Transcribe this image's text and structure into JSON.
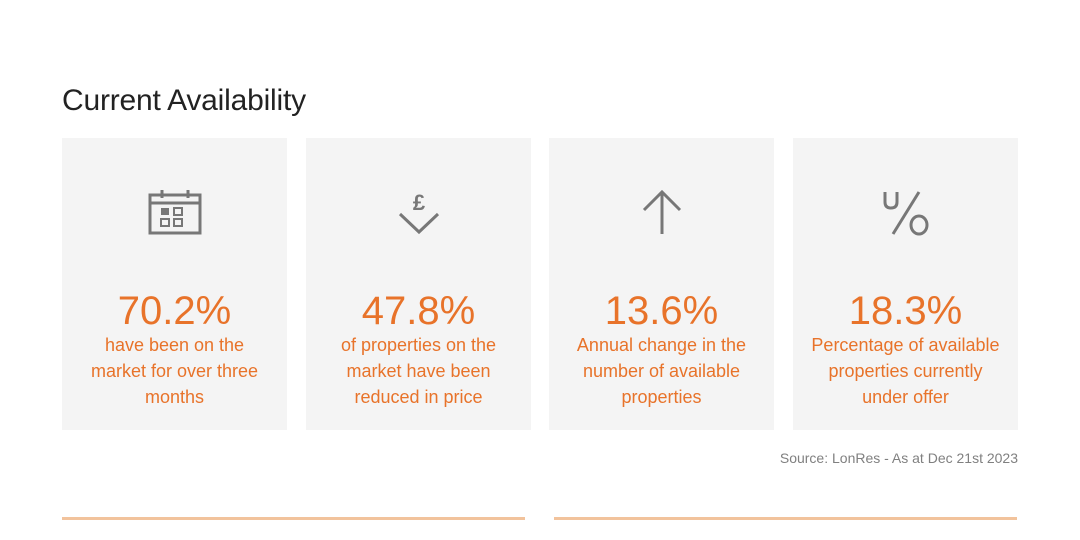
{
  "header": {
    "title": "Current Availability"
  },
  "cards": [
    {
      "icon": "calendar-icon",
      "value": "70.2%",
      "description": "have been on the market for over three months"
    },
    {
      "icon": "price-reduction-icon",
      "value": "47.8%",
      "description": "of properties on the market have been reduced in price"
    },
    {
      "icon": "arrow-up-icon",
      "value": "13.6%",
      "description": "Annual change in the number of available properties"
    },
    {
      "icon": "under-offer-icon",
      "value": "18.3%",
      "description": "Percentage of available properties currently under offer"
    }
  ],
  "footer": {
    "source": "Source: LonRes - As at Dec 21st 2023"
  },
  "colors": {
    "accent": "#e8732a",
    "card_bg": "#f4f4f4",
    "icon": "#777777",
    "rule": "#f2c39c"
  }
}
